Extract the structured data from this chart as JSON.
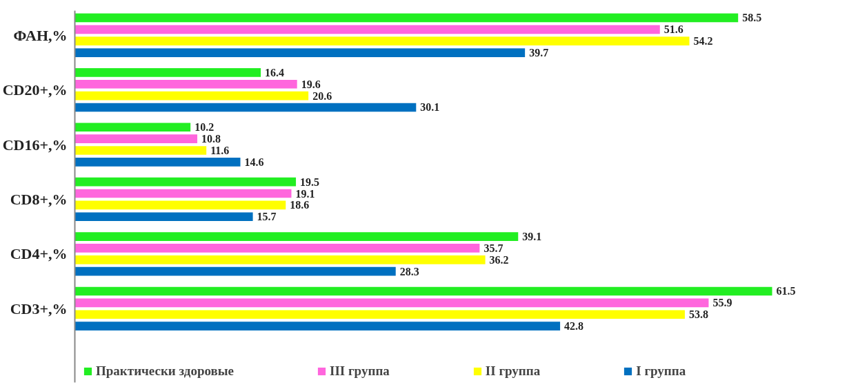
{
  "chart_data": {
    "type": "bar",
    "orientation": "horizontal",
    "categories": [
      "ФАН,%",
      "CD20+,%",
      "CD16+,%",
      "CD8+,%",
      "CD4+,%",
      "CD3+,%"
    ],
    "series": [
      {
        "name": "Практически здоровые",
        "color": "#22ee22",
        "values": [
          58.5,
          16.4,
          10.2,
          19.5,
          39.1,
          61.5
        ]
      },
      {
        "name": "III группа",
        "color": "#ff66dd",
        "values": [
          51.6,
          19.6,
          10.8,
          19.1,
          35.7,
          55.9
        ]
      },
      {
        "name": "II группа",
        "color": "#ffff00",
        "values": [
          54.2,
          20.6,
          11.6,
          18.6,
          36.2,
          53.8
        ]
      },
      {
        "name": "I группа",
        "color": "#0070c0",
        "values": [
          39.7,
          30.1,
          14.6,
          15.7,
          28.3,
          42.8
        ]
      }
    ],
    "data_labels": true,
    "legend": "bottom",
    "grid": false,
    "tick_labels": "y"
  }
}
